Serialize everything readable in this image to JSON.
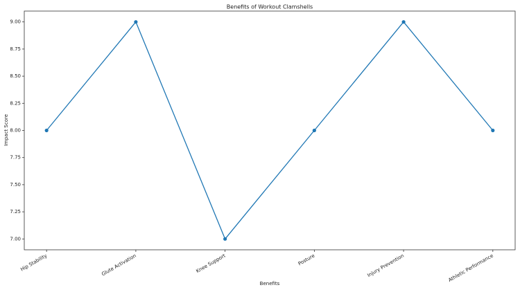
{
  "chart_data": {
    "type": "line",
    "title": "Benefits of Workout Clamshells",
    "x_label": "Benefits",
    "y_label": "Impact Score",
    "categories": [
      "Hip Stability",
      "Glute Activation",
      "Knee Support",
      "Posture",
      "Injury Prevention",
      "Athletic Performance"
    ],
    "series": [
      {
        "name": "Impact Score",
        "color": "#1f77b4",
        "values": [
          8,
          9,
          7,
          8,
          9,
          8
        ]
      }
    ],
    "ylim": [
      6.9,
      9.1
    ],
    "yticks": [
      {
        "value": 7,
        "label": "7.00"
      },
      {
        "value": 7.25,
        "label": "7.25"
      },
      {
        "value": 7.5,
        "label": "7.50"
      },
      {
        "value": 7.75,
        "label": "7.75"
      },
      {
        "value": 8,
        "label": "8.00"
      },
      {
        "value": 8.25,
        "label": "8.25"
      },
      {
        "value": 8.5,
        "label": "8.50"
      },
      {
        "value": 8.75,
        "label": "8.75"
      },
      {
        "value": 9,
        "label": "9.00"
      }
    ]
  }
}
